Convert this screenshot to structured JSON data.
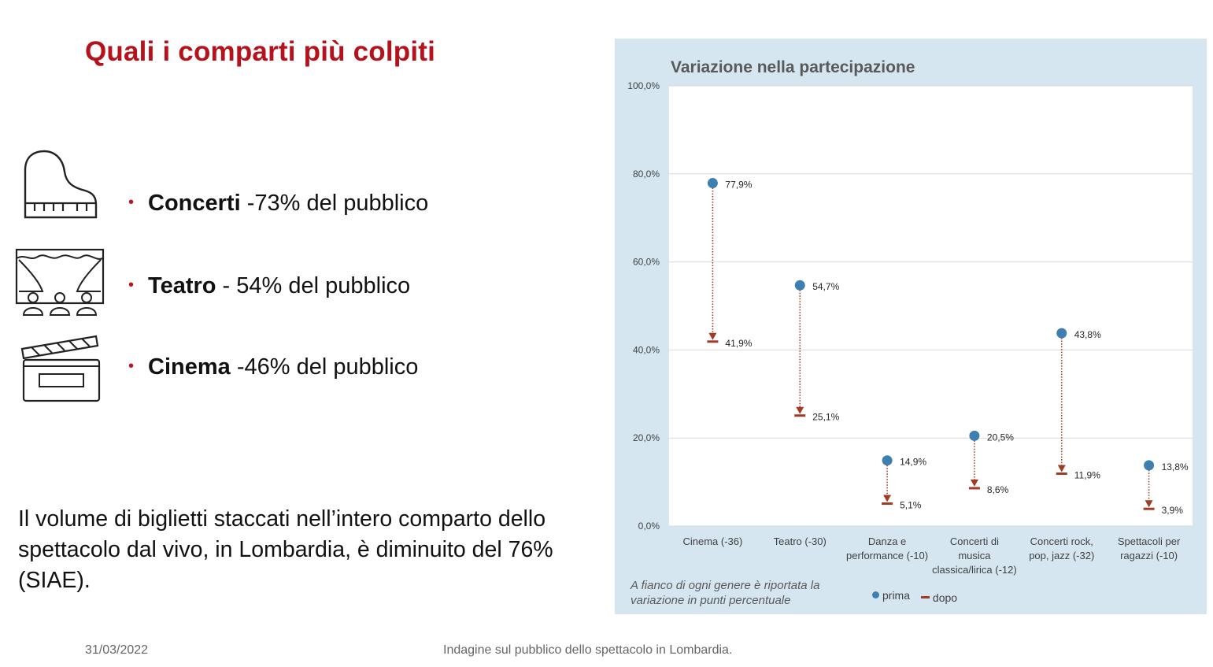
{
  "title": "Quali i comparti più colpiti",
  "bullets": [
    {
      "bold": "Concerti",
      "rest": " -73% del pubblico",
      "icon": "piano-icon"
    },
    {
      "bold": "Teatro",
      "rest": " - 54% del pubblico",
      "icon": "theater-icon"
    },
    {
      "bold": "Cinema",
      "rest": " -46% del pubblico",
      "icon": "clapperboard-icon"
    }
  ],
  "paragraph": "Il volume di biglietti staccati nell’intero comparto dello spettacolo dal vivo, in Lombardia, è diminuito del 76% (SIAE).",
  "footer": {
    "date": "31/03/2022",
    "text": "Indagine sul pubblico dello spettacolo in Lombardia."
  },
  "colors": {
    "title": "#b5121b",
    "panel_bg": "#d6e6f0",
    "prima": "#3d7fb0",
    "dopo": "#a23b24"
  },
  "chart_data": {
    "type": "scatter",
    "title": "Variazione nella partecipazione",
    "ylim": [
      0,
      100
    ],
    "yticks": [
      "0,0%",
      "20,0%",
      "40,0%",
      "60,0%",
      "80,0%",
      "100,0%"
    ],
    "ytick_values": [
      0,
      20,
      40,
      60,
      80,
      100
    ],
    "grid": true,
    "categories": [
      "Cinema (-36)",
      "Teatro (-30)",
      "Danza e performance (-10)",
      "Concerti di musica classica/lirica (-12)",
      "Concerti rock, pop, jazz (-32)",
      "Spettacoli per ragazzi (-10)"
    ],
    "category_lines": [
      [
        "Cinema (-36)"
      ],
      [
        "Teatro (-30)"
      ],
      [
        "Danza e",
        "performance (-10)"
      ],
      [
        "Concerti di",
        "musica",
        "classica/lirica (-12)"
      ],
      [
        "Concerti rock,",
        "pop, jazz (-32)"
      ],
      [
        "Spettacoli per",
        "ragazzi (-10)"
      ]
    ],
    "series": [
      {
        "name": "prima",
        "values": [
          77.9,
          54.7,
          14.9,
          20.5,
          43.8,
          13.8
        ],
        "labels": [
          "77,9%",
          "54,7%",
          "14,9%",
          "20,5%",
          "43,8%",
          "13,8%"
        ]
      },
      {
        "name": "dopo",
        "values": [
          41.9,
          25.1,
          5.1,
          8.6,
          11.9,
          3.9
        ],
        "labels": [
          "41,9%",
          "25,1%",
          "5,1%",
          "8,6%",
          "11,9%",
          "3,9%"
        ]
      }
    ],
    "legend": "bottom",
    "note": [
      "A fianco di ogni genere è riportata la",
      "variazione in punti percentuale"
    ]
  }
}
